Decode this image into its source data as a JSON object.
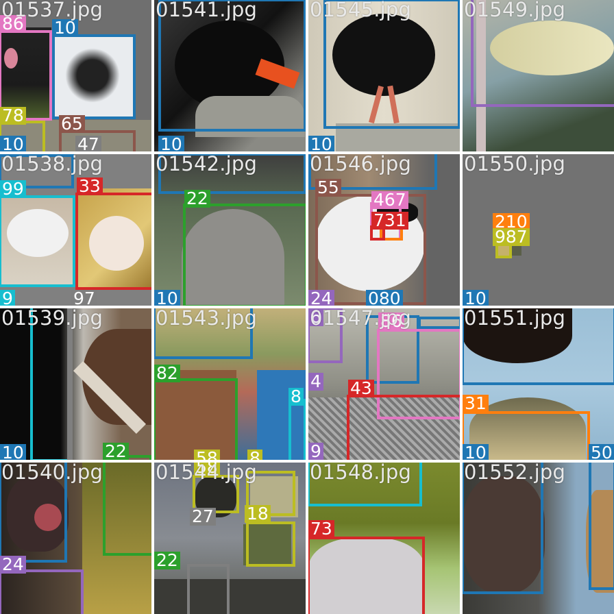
{
  "colors": {
    "blue": "#1f77b4",
    "pink": "#e377c2",
    "olive": "#bcbd22",
    "brown": "#8c564b",
    "cyan": "#17becf",
    "red": "#d62728",
    "green": "#2ca02c",
    "purple": "#9467bd",
    "orange": "#ff7f0e",
    "gray": "#7f7f7f"
  },
  "tiles": [
    {
      "filename": "01537.jpg",
      "labels": [
        "86",
        "10",
        "78",
        "65",
        "10",
        "47"
      ]
    },
    {
      "filename": "01541.jpg",
      "labels": [
        "10"
      ]
    },
    {
      "filename": "01545.jpg",
      "labels": [
        "10"
      ]
    },
    {
      "filename": "01549.jpg",
      "labels": []
    },
    {
      "filename": "01538.jpg",
      "labels": [
        "99",
        "33",
        "9",
        "97"
      ]
    },
    {
      "filename": "01542.jpg",
      "labels": [
        "22",
        "10"
      ]
    },
    {
      "filename": "01546.jpg",
      "labels": [
        "55",
        "467",
        "731",
        "24",
        "080"
      ]
    },
    {
      "filename": "01550.jpg",
      "labels": [
        "210",
        "987",
        "10"
      ]
    },
    {
      "filename": "01539.jpg",
      "labels": [
        "10",
        "22"
      ]
    },
    {
      "filename": "01543.jpg",
      "labels": [
        "82",
        "8",
        "58",
        "8"
      ]
    },
    {
      "filename": "01547.jpg",
      "labels": [
        "6",
        "86",
        "4",
        "43",
        "9"
      ]
    },
    {
      "filename": "01551.jpg",
      "labels": [
        "31",
        "10",
        "50"
      ]
    },
    {
      "filename": "01540.jpg",
      "labels": [
        "24"
      ]
    },
    {
      "filename": "01544.jpg",
      "labels": [
        "27",
        "18",
        "22"
      ]
    },
    {
      "filename": "01548.jpg",
      "labels": [
        "73"
      ]
    },
    {
      "filename": "01552.jpg",
      "labels": []
    }
  ]
}
